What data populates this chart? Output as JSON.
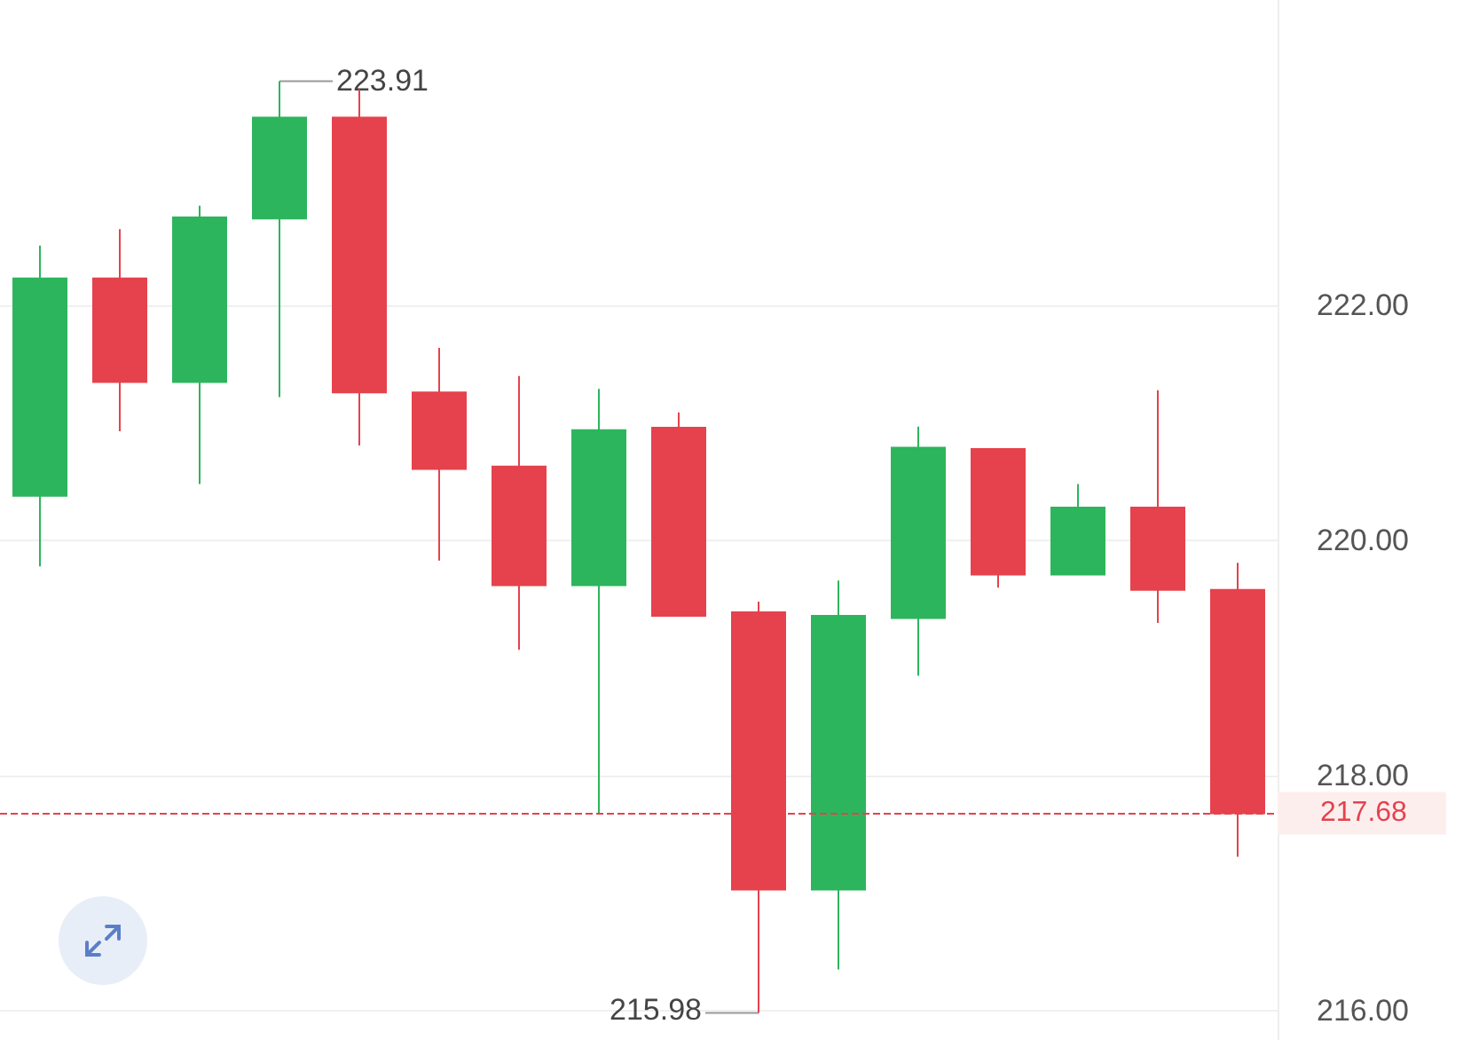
{
  "chart_data": {
    "type": "candlestick",
    "categories": [
      null,
      null,
      null,
      null,
      null,
      null,
      null,
      null,
      null,
      null,
      null,
      null,
      null,
      null,
      null,
      null
    ],
    "ohlc": [
      [
        220.38,
        222.51,
        219.78,
        222.23
      ],
      [
        222.23,
        222.65,
        220.93,
        221.35
      ],
      [
        221.35,
        222.85,
        220.48,
        222.75
      ],
      [
        222.74,
        223.91,
        221.22,
        223.6
      ],
      [
        223.6,
        223.84,
        220.81,
        221.26
      ],
      [
        221.26,
        221.64,
        219.83,
        220.61
      ],
      [
        220.63,
        221.4,
        219.07,
        219.62
      ],
      [
        219.62,
        221.29,
        217.68,
        220.94
      ],
      [
        220.96,
        221.09,
        219.36,
        219.36
      ],
      [
        219.39,
        219.48,
        215.98,
        217.03
      ],
      [
        217.03,
        219.66,
        216.35,
        219.36
      ],
      [
        219.34,
        220.97,
        218.85,
        220.79
      ],
      [
        220.78,
        220.78,
        219.6,
        219.71
      ],
      [
        219.71,
        220.48,
        219.71,
        220.28
      ],
      [
        220.28,
        221.28,
        219.3,
        219.58
      ],
      [
        219.58,
        219.81,
        217.31,
        217.68
      ]
    ],
    "colors": [
      "#2db55d",
      "#e5424d",
      "#2db55d",
      "#2db55d",
      "#e5424d",
      "#e5424d",
      "#e5424d",
      "#2db55d",
      "#e5424d",
      "#e5424d",
      "#2db55d",
      "#2db55d",
      "#e5424d",
      "#2db55d",
      "#e5424d",
      "#e5424d"
    ],
    "ylim": [
      215.75,
      224.6
    ],
    "yticks": [
      {
        "value": 216,
        "label": "216.00"
      },
      {
        "value": 218,
        "label": "218.00"
      },
      {
        "value": 220,
        "label": "220.00"
      },
      {
        "value": 222,
        "label": "222.00"
      }
    ],
    "ref_lines": [
      {
        "axis": "y",
        "value": 217.68,
        "label": "217.68",
        "color": "#e5424d",
        "line_style": "dashed"
      }
    ],
    "annotations": [
      "223.91",
      "215.98"
    ],
    "grid": "y",
    "tick_labels": "y"
  }
}
